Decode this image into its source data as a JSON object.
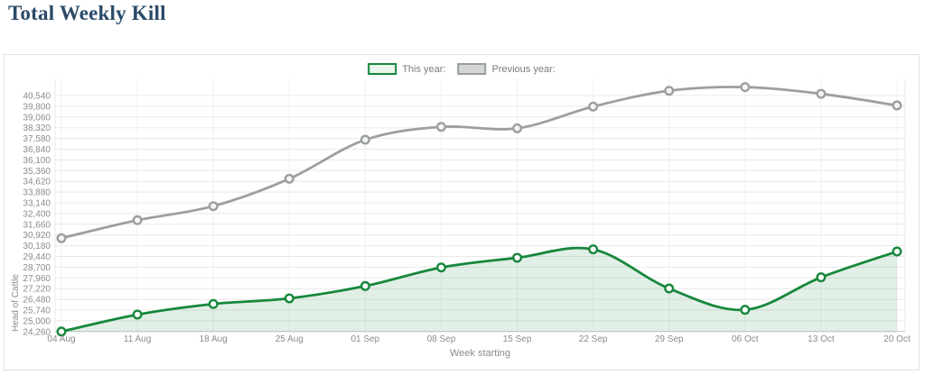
{
  "page": {
    "title": "Total Weekly Kill"
  },
  "chart_data": {
    "type": "line",
    "title": "Total Weekly Kill",
    "xlabel": "Week starting",
    "ylabel": "Head of Cattle",
    "categories": [
      "04 Aug",
      "11 Aug",
      "18 Aug",
      "25 Aug",
      "01 Sep",
      "08 Sep",
      "15 Sep",
      "22 Sep",
      "29 Sep",
      "06 Oct",
      "13 Oct",
      "20 Oct"
    ],
    "series": [
      {
        "name": "This year:",
        "color": "#17873c",
        "marker_fill": "#ffffff",
        "swatch_fill": "#e9f5ed",
        "area": true,
        "area_color": "rgba(23,135,60,0.13)",
        "values": [
          24260,
          25430,
          26160,
          26550,
          27400,
          28680,
          29350,
          29930,
          27230,
          25760,
          28000,
          29780
        ]
      },
      {
        "name": "Previous year:",
        "color": "#9ba09c",
        "marker_fill": "#f4f5f4",
        "swatch_fill": "#d3d6d3",
        "area": false,
        "area_color": "none",
        "values": [
          30700,
          31940,
          32910,
          34800,
          37490,
          38380,
          38280,
          39780,
          40870,
          41120,
          40660,
          39860
        ]
      }
    ],
    "y_ticks": [
      24260,
      25000,
      25740,
      26480,
      27220,
      27960,
      28700,
      29440,
      30180,
      30920,
      31660,
      32400,
      33140,
      33880,
      34620,
      35360,
      36100,
      36840,
      37580,
      38320,
      39060,
      39800,
      40540
    ],
    "y_tick_step": 740,
    "ylim": [
      24260,
      41680
    ],
    "grid": true,
    "legend_position": "top-center"
  },
  "colors": {
    "title": "#2b4a68",
    "panel_border": "#e2e2e2",
    "grid_h": "#e8e8e8",
    "grid_v": "#f1f1f1",
    "axis_line": "#c9c9c9",
    "tick_text": "#8b8b8b",
    "axis_title_text": "#8b8b8b",
    "legend_text": "#7d7d7d"
  }
}
